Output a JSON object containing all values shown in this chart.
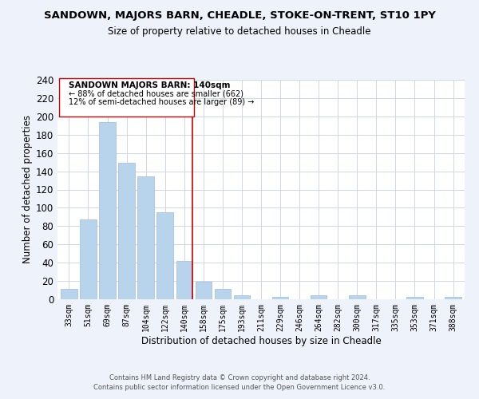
{
  "title": "SANDOWN, MAJORS BARN, CHEADLE, STOKE-ON-TRENT, ST10 1PY",
  "subtitle": "Size of property relative to detached houses in Cheadle",
  "xlabel": "Distribution of detached houses by size in Cheadle",
  "ylabel": "Number of detached properties",
  "bar_labels": [
    "33sqm",
    "51sqm",
    "69sqm",
    "87sqm",
    "104sqm",
    "122sqm",
    "140sqm",
    "158sqm",
    "175sqm",
    "193sqm",
    "211sqm",
    "229sqm",
    "246sqm",
    "264sqm",
    "282sqm",
    "300sqm",
    "317sqm",
    "335sqm",
    "353sqm",
    "371sqm",
    "388sqm"
  ],
  "bar_heights": [
    11,
    87,
    194,
    149,
    134,
    95,
    42,
    19,
    11,
    4,
    0,
    3,
    0,
    4,
    0,
    4,
    0,
    0,
    3,
    0,
    3
  ],
  "bar_color": "#b8d4ec",
  "vline_color": "#cc0000",
  "vline_x_index": 6,
  "annotation_title": "SANDOWN MAJORS BARN: 140sqm",
  "annotation_line1": "← 88% of detached houses are smaller (662)",
  "annotation_line2": "12% of semi-detached houses are larger (89) →",
  "ylim": [
    0,
    240
  ],
  "yticks": [
    0,
    20,
    40,
    60,
    80,
    100,
    120,
    140,
    160,
    180,
    200,
    220,
    240
  ],
  "footer_line1": "Contains HM Land Registry data © Crown copyright and database right 2024.",
  "footer_line2": "Contains public sector information licensed under the Open Government Licence v3.0.",
  "bg_color": "#eef2fb",
  "plot_bg_color": "#ffffff",
  "grid_color": "#c8d0e0"
}
